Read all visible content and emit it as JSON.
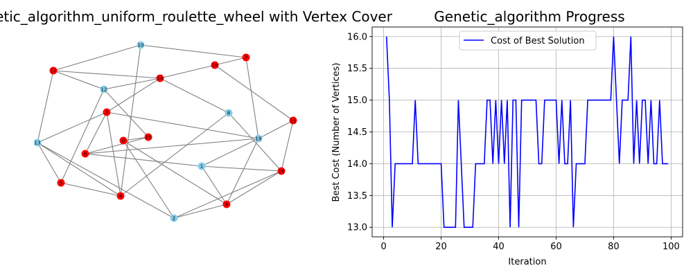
{
  "colors": {
    "red": "#ff0000",
    "blue": "#87ceeb",
    "edge": "#808080",
    "line": "#0000ff",
    "grid": "#b0b0b0"
  },
  "chart_data": [
    {
      "type": "network",
      "title": "Graph_genetic_algorithm_uniform_roulette_wheel with Vertex Cover",
      "nodes": [
        {
          "id": "0",
          "cover": true
        },
        {
          "id": "1",
          "cover": false
        },
        {
          "id": "2",
          "cover": false
        },
        {
          "id": "3",
          "cover": true
        },
        {
          "id": "4",
          "cover": true
        },
        {
          "id": "5",
          "cover": true
        },
        {
          "id": "6",
          "cover": true
        },
        {
          "id": "7",
          "cover": true
        },
        {
          "id": "8",
          "cover": false
        },
        {
          "id": "9",
          "cover": true
        },
        {
          "id": "10",
          "cover": false
        },
        {
          "id": "11",
          "cover": true
        },
        {
          "id": "12",
          "cover": false
        },
        {
          "id": "13",
          "cover": false
        },
        {
          "id": "14",
          "cover": true
        },
        {
          "id": "15",
          "cover": true
        },
        {
          "id": "16",
          "cover": true
        },
        {
          "id": "17",
          "cover": true
        },
        {
          "id": "18",
          "cover": true
        },
        {
          "id": "19",
          "cover": false
        }
      ],
      "edges": [
        [
          "10",
          "7"
        ],
        [
          "10",
          "17"
        ],
        [
          "10",
          "4"
        ],
        [
          "17",
          "14"
        ],
        [
          "17",
          "12"
        ],
        [
          "17",
          "13"
        ],
        [
          "12",
          "14"
        ],
        [
          "12",
          "15"
        ],
        [
          "12",
          "5"
        ],
        [
          "14",
          "16"
        ],
        [
          "14",
          "8"
        ],
        [
          "14",
          "3"
        ],
        [
          "16",
          "7"
        ],
        [
          "16",
          "11"
        ],
        [
          "7",
          "19"
        ],
        [
          "4",
          "8"
        ],
        [
          "4",
          "3"
        ],
        [
          "3",
          "6"
        ],
        [
          "3",
          "19"
        ],
        [
          "13",
          "3"
        ],
        [
          "13",
          "5"
        ],
        [
          "13",
          "2"
        ],
        [
          "6",
          "1"
        ],
        [
          "6",
          "19"
        ],
        [
          "15",
          "0"
        ],
        [
          "0",
          "2"
        ],
        [
          "0",
          "9"
        ],
        [
          "1",
          "19"
        ],
        [
          "1",
          "9"
        ],
        [
          "8",
          "18"
        ],
        [
          "19",
          "9"
        ],
        [
          "11",
          "18"
        ],
        [
          "11",
          "19"
        ],
        [
          "9",
          "18"
        ],
        [
          "18",
          "2"
        ],
        [
          "5",
          "4"
        ],
        [
          "4",
          "13"
        ],
        [
          "6",
          "15"
        ],
        [
          "2",
          "9"
        ],
        [
          "1",
          "18"
        ]
      ]
    },
    {
      "type": "line",
      "title": "Genetic_algorithm Progress",
      "xlabel": "Iteration",
      "ylabel": "Best Cost (Number of Vertices)",
      "xlim": [
        -4,
        104
      ],
      "ylim": [
        12.85,
        16.15
      ],
      "xticks": [
        "0",
        "20",
        "40",
        "60",
        "80",
        "100"
      ],
      "yticks": [
        "13.0",
        "13.5",
        "14.0",
        "14.5",
        "15.0",
        "15.5",
        "16.0"
      ],
      "grid": true,
      "legend_position": "top-center",
      "series": [
        {
          "name": "Cost of Best Solution",
          "x": [
            1,
            2,
            3,
            4,
            5,
            6,
            7,
            8,
            9,
            10,
            11,
            12,
            13,
            14,
            15,
            16,
            17,
            18,
            19,
            20,
            21,
            22,
            23,
            24,
            25,
            26,
            27,
            28,
            29,
            30,
            31,
            32,
            33,
            34,
            35,
            36,
            37,
            38,
            39,
            40,
            41,
            42,
            43,
            44,
            45,
            46,
            47,
            48,
            49,
            50,
            51,
            52,
            53,
            54,
            55,
            56,
            57,
            58,
            59,
            60,
            61,
            62,
            63,
            64,
            65,
            66,
            67,
            68,
            69,
            70,
            71,
            72,
            73,
            74,
            75,
            76,
            77,
            78,
            79,
            80,
            81,
            82,
            83,
            84,
            85,
            86,
            87,
            88,
            89,
            90,
            91,
            92,
            93,
            94,
            95,
            96,
            97,
            98,
            99
          ],
          "values": [
            16,
            15,
            13,
            14,
            14,
            14,
            14,
            14,
            14,
            14,
            15,
            14,
            14,
            14,
            14,
            14,
            14,
            14,
            14,
            14,
            13,
            13,
            13,
            13,
            13,
            15,
            14,
            13,
            13,
            13,
            13,
            14,
            14,
            14,
            14,
            15,
            15,
            14,
            15,
            14,
            15,
            14,
            15,
            13,
            15,
            15,
            13,
            15,
            15,
            15,
            15,
            15,
            15,
            14,
            14,
            15,
            15,
            15,
            15,
            15,
            14,
            15,
            14,
            14,
            15,
            13,
            14,
            14,
            14,
            14,
            15,
            15,
            15,
            15,
            15,
            15,
            15,
            15,
            15,
            16,
            15,
            14,
            15,
            15,
            15,
            16,
            14,
            15,
            14,
            15,
            15,
            14,
            15,
            14,
            14,
            15,
            14,
            14,
            14
          ]
        }
      ]
    }
  ]
}
